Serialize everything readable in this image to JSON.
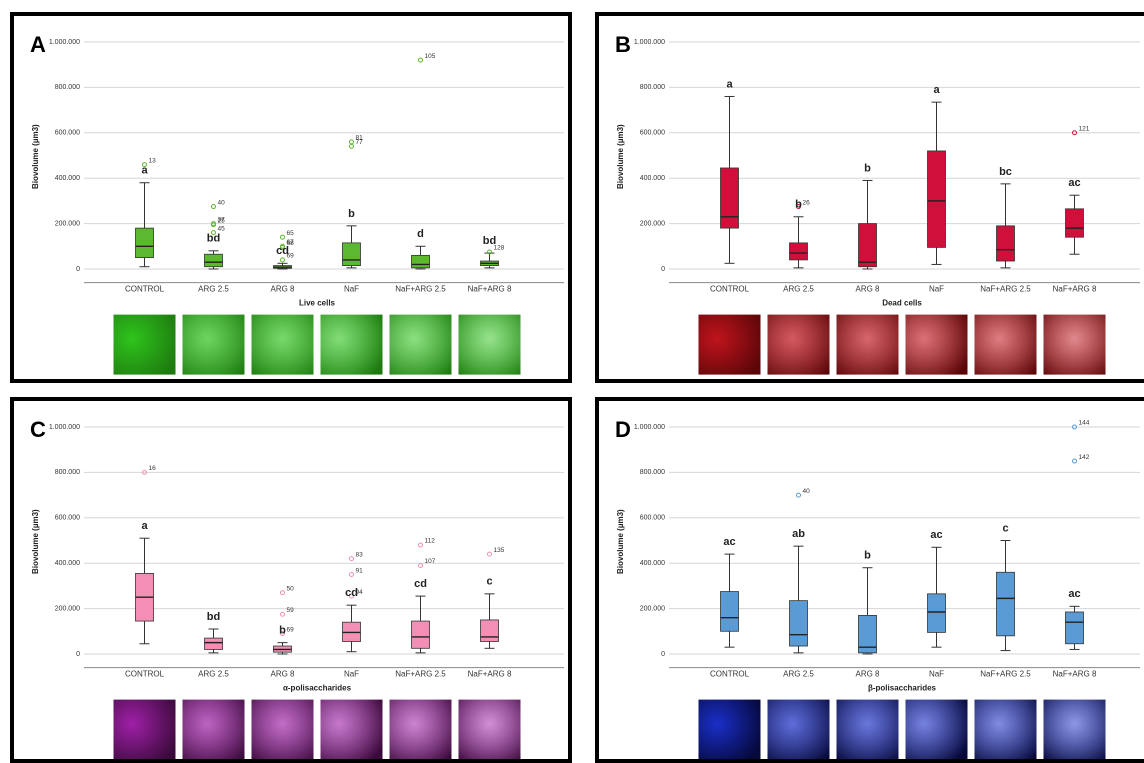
{
  "chart_data": [
    {
      "type": "box",
      "panel": "A",
      "ylabel": "Biovolume (µm3)",
      "xlabel": "Live cells",
      "color": "#5cb82e",
      "categories": [
        "CONTROL",
        "ARG 2.5",
        "ARG 8",
        "NaF",
        "NaF+ARG 2.5",
        "NaF+ARG 8"
      ],
      "ylim": [
        -60000,
        1050000
      ],
      "yticks": [
        0,
        {
          "value": 200000,
          "label": "200.000"
        },
        {
          "value": 400000,
          "label": "400.000"
        },
        {
          "value": 600000,
          "label": "600.000"
        },
        {
          "value": 800000,
          "label": "800.000"
        },
        {
          "value": 1000000,
          "label": "1.000.000"
        }
      ],
      "grid": true,
      "whisker_low": [
        10000,
        0,
        0,
        5000,
        0,
        5000
      ],
      "q1": [
        50000,
        10000,
        3000,
        15000,
        5000,
        15000
      ],
      "median": [
        100000,
        30000,
        8000,
        40000,
        20000,
        25000
      ],
      "q3": [
        180000,
        65000,
        15000,
        115000,
        60000,
        35000
      ],
      "whisker_high": [
        380000,
        80000,
        25000,
        190000,
        100000,
        70000
      ],
      "outliers": [
        [
          {
            "label": "13",
            "value": 460000
          }
        ],
        [
          {
            "label": "40",
            "value": 275000
          },
          {
            "label": "37",
            "value": 200000
          },
          {
            "label": "25",
            "value": 195000
          },
          {
            "label": "45",
            "value": 160000
          }
        ],
        [
          {
            "label": "65",
            "value": 140000
          },
          {
            "label": "68",
            "value": 95000
          },
          {
            "label": "67",
            "value": 100000
          },
          {
            "label": "69",
            "value": 40000
          }
        ],
        [
          {
            "label": "81",
            "value": 560000
          },
          {
            "label": "77",
            "value": 540000
          }
        ],
        [
          {
            "label": "105",
            "value": 920000
          }
        ],
        [
          {
            "label": "128",
            "value": 75000
          }
        ]
      ],
      "letters": [
        "a",
        "bd",
        "cd",
        "b",
        "d",
        "bd"
      ]
    },
    {
      "type": "box",
      "panel": "B",
      "ylabel": "Biovolume (µm3)",
      "xlabel": "Dead cells",
      "color": "#d0103a",
      "categories": [
        "CONTROL",
        "ARG 2.5",
        "ARG 8",
        "NaF",
        "NaF+ARG 2.5",
        "NaF+ARG 8"
      ],
      "ylim": [
        -60000,
        1050000
      ],
      "yticks": [
        0,
        {
          "value": 200000,
          "label": "200.000"
        },
        {
          "value": 400000,
          "label": "400.000"
        },
        {
          "value": 600000,
          "label": "600.000"
        },
        {
          "value": 800000,
          "label": "800.000"
        },
        {
          "value": 1000000,
          "label": "1.000.000"
        }
      ],
      "grid": true,
      "whisker_low": [
        25000,
        5000,
        0,
        20000,
        5000,
        65000
      ],
      "q1": [
        180000,
        40000,
        10000,
        95000,
        35000,
        140000
      ],
      "median": [
        230000,
        70000,
        30000,
        300000,
        85000,
        180000
      ],
      "q3": [
        445000,
        115000,
        200000,
        520000,
        190000,
        265000
      ],
      "whisker_high": [
        760000,
        230000,
        390000,
        735000,
        375000,
        325000
      ],
      "outliers": [
        [],
        [
          {
            "label": "26",
            "value": 275000
          }
        ],
        [],
        [],
        [],
        [
          {
            "label": "121",
            "value": 600000
          }
        ]
      ],
      "letters": [
        "a",
        "b",
        "b",
        "a",
        "bc",
        "ac"
      ]
    },
    {
      "type": "box",
      "panel": "C",
      "ylabel": "Biovolume (µm3)",
      "xlabel": "α-polisaccharides",
      "color": "#f38fb5",
      "categories": [
        "CONTROL",
        "ARG 2.5",
        "ARG 8",
        "NaF",
        "NaF+ARG 2.5",
        "NaF+ARG 8"
      ],
      "ylim": [
        -60000,
        1050000
      ],
      "yticks": [
        0,
        {
          "value": 200000,
          "label": "200.000"
        },
        {
          "value": 400000,
          "label": "400.000"
        },
        {
          "value": 600000,
          "label": "600.000"
        },
        {
          "value": 800000,
          "label": "800.000"
        },
        {
          "value": 1000000,
          "label": "1.000.000"
        }
      ],
      "grid": true,
      "whisker_low": [
        45000,
        5000,
        0,
        10000,
        5000,
        25000
      ],
      "q1": [
        145000,
        20000,
        8000,
        55000,
        25000,
        55000
      ],
      "median": [
        250000,
        50000,
        20000,
        95000,
        75000,
        75000
      ],
      "q3": [
        355000,
        70000,
        35000,
        140000,
        145000,
        150000
      ],
      "whisker_high": [
        510000,
        110000,
        50000,
        215000,
        255000,
        265000
      ],
      "outliers": [
        [
          {
            "label": "16",
            "value": 800000
          }
        ],
        [],
        [
          {
            "label": "50",
            "value": 270000
          },
          {
            "label": "59",
            "value": 175000
          },
          {
            "label": "69",
            "value": 90000
          }
        ],
        [
          {
            "label": "83",
            "value": 420000
          },
          {
            "label": "91",
            "value": 350000
          },
          {
            "label": "94",
            "value": 255000
          }
        ],
        [
          {
            "label": "112",
            "value": 480000
          },
          {
            "label": "107",
            "value": 390000
          }
        ],
        [
          {
            "label": "135",
            "value": 440000
          }
        ]
      ],
      "letters": [
        "a",
        "bd",
        "b",
        "cd",
        "cd",
        "c"
      ]
    },
    {
      "type": "box",
      "panel": "D",
      "ylabel": "Biovolume (µm3)",
      "xlabel": "β-polisaccharides",
      "color": "#5b9bd5",
      "categories": [
        "CONTROL",
        "ARG 2.5",
        "ARG 8",
        "NaF",
        "NaF+ARG 2.5",
        "NaF+ARG 8"
      ],
      "ylim": [
        -60000,
        1050000
      ],
      "yticks": [
        0,
        {
          "value": 200000,
          "label": "200.000"
        },
        {
          "value": 400000,
          "label": "400.000"
        },
        {
          "value": 600000,
          "label": "600.000"
        },
        {
          "value": 800000,
          "label": "800.000"
        },
        {
          "value": 1000000,
          "label": "1.000.000"
        }
      ],
      "grid": true,
      "whisker_low": [
        30000,
        5000,
        0,
        30000,
        15000,
        20000
      ],
      "q1": [
        100000,
        35000,
        5000,
        95000,
        80000,
        45000
      ],
      "median": [
        160000,
        85000,
        30000,
        185000,
        245000,
        140000
      ],
      "q3": [
        275000,
        235000,
        170000,
        265000,
        360000,
        185000
      ],
      "whisker_high": [
        440000,
        475000,
        380000,
        470000,
        500000,
        210000
      ],
      "outliers": [
        [],
        [
          {
            "label": "40",
            "value": 700000
          }
        ],
        [],
        [],
        [],
        [
          {
            "label": "144",
            "value": 1000000
          },
          {
            "label": "142",
            "value": 850000
          }
        ]
      ],
      "letters": [
        "ac",
        "ab",
        "b",
        "ac",
        "c",
        "ac"
      ]
    }
  ]
}
